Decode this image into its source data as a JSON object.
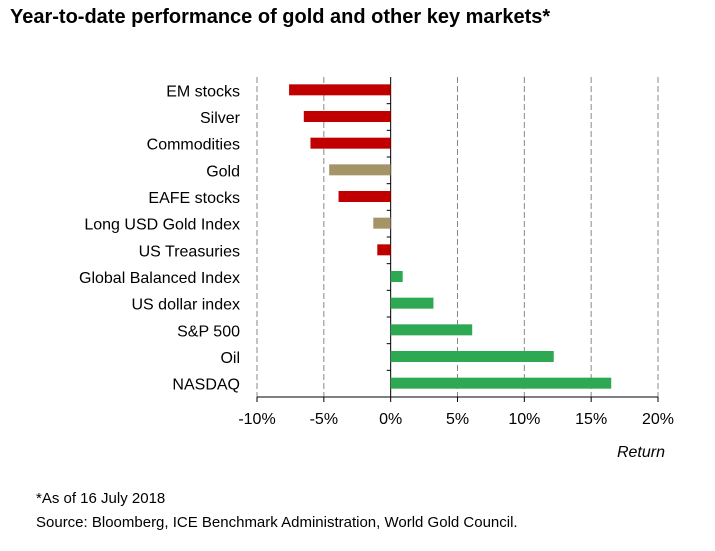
{
  "chart_data": {
    "type": "bar",
    "orientation": "horizontal",
    "title": "Year-to-date performance of gold and other key markets*",
    "xlabel": "Return",
    "ylabel": "",
    "xlim": [
      -10,
      20
    ],
    "xticks": [
      "-10%",
      "-5%",
      "0%",
      "5%",
      "10%",
      "15%",
      "20%"
    ],
    "xtick_values": [
      -10,
      -5,
      0,
      5,
      10,
      15,
      20
    ],
    "grid": "vertical dashed",
    "categories": [
      "EM stocks",
      "Silver",
      "Commodities",
      "Gold",
      "EAFE stocks",
      "Long USD Gold Index",
      "US Treasuries",
      "Global Balanced Index",
      "US dollar index",
      "S&P 500",
      "Oil",
      "NASDAQ"
    ],
    "values": [
      -7.6,
      -6.5,
      -6.0,
      -4.6,
      -3.9,
      -1.3,
      -1.0,
      0.9,
      3.2,
      6.1,
      12.2,
      16.5
    ],
    "bar_colors": [
      "#c00000",
      "#c00000",
      "#c00000",
      "#a59467",
      "#c00000",
      "#a59467",
      "#c00000",
      "#2ea853",
      "#2ea853",
      "#2ea853",
      "#2ea853",
      "#2ea853"
    ]
  },
  "footnote": "*As of 16 July 2018",
  "source": "Source: Bloomberg, ICE Benchmark Administration, World Gold Council."
}
